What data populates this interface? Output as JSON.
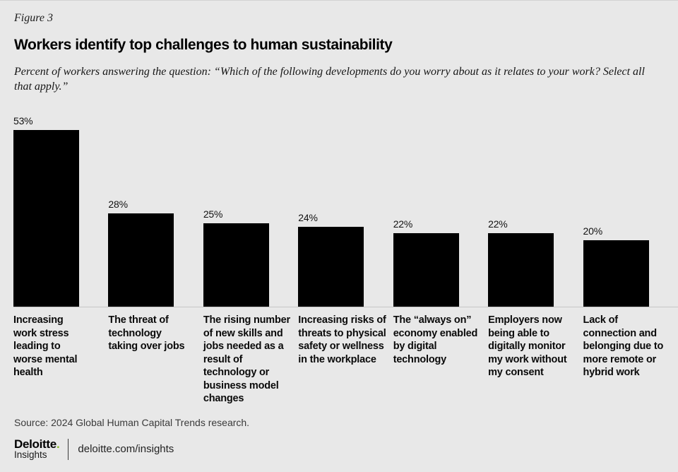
{
  "figure_label": "Figure 3",
  "title": "Workers identify top challenges to human sustainability",
  "subtitle": "Percent of workers answering the question: “Which of the following developments do you worry about as it relates to your work? Select all that apply.”",
  "source": "Source: 2024 Global Human Capital Trends research.",
  "footer": {
    "brand": "Deloitte",
    "brand_dot": ".",
    "brand_sub": "Insights",
    "url": "deloitte.com/insights"
  },
  "colors": {
    "background": "#e8e8e8",
    "bar": "#000000",
    "deloitte_green": "#86bc25",
    "axis_line": "#c6c6c6"
  },
  "chart_data": {
    "type": "bar",
    "title": "Workers identify top challenges to human sustainability",
    "categories": [
      "Increasing work stress leading to worse mental health",
      "The threat of technology taking over jobs",
      "The rising number of new skills and jobs needed as a result of technology or business model changes",
      "Increasing risks of threats to physical safety or wellness in the workplace",
      "The “always on” economy enabled by digital technology",
      "Employers now being able to digitally monitor my work without my consent",
      "Lack of connection and belonging due to more remote or hybrid work"
    ],
    "categories_display": [
      "Increasing\nwork stress\nleading to\nworse mental\nhealth",
      "The threat of\ntechnology\ntaking over jobs",
      "The rising number\nof new skills and\njobs needed as a\nresult of\ntechnology or\nbusiness model\nchanges",
      "Increasing risks of\nthreats to physical\nsafety or wellness\nin the workplace",
      "The “always on”\neconomy enabled\nby digital\ntechnology",
      "Employers now\nbeing able to\ndigitally monitor\nmy work without\nmy consent",
      "Lack of\nconnection and\nbelonging due to\nmore remote or\nhybrid work"
    ],
    "values": [
      53,
      28,
      25,
      24,
      22,
      22,
      20
    ],
    "value_suffix": "%",
    "ylim": [
      0,
      53
    ],
    "grid": false,
    "legend": false,
    "bar_color": "#000000",
    "value_label_position": "above-bar-left"
  }
}
